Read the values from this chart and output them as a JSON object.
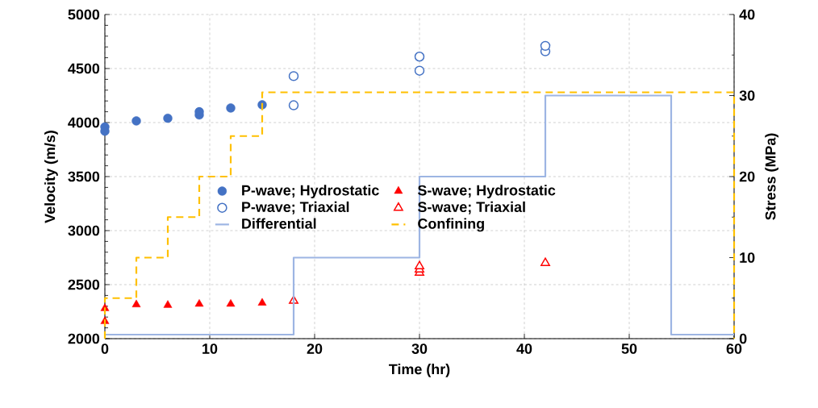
{
  "chart_data": {
    "type": "scatter",
    "xlabel": "Time (hr)",
    "ylabel": "Velocity (m/s)",
    "y2label": "Stress (MPa)",
    "xlim": [
      0,
      60
    ],
    "xticks": [
      0,
      10,
      20,
      30,
      40,
      50,
      60
    ],
    "ylim": [
      2000,
      5000
    ],
    "yticks": [
      2000,
      2500,
      3000,
      3500,
      4000,
      4500,
      5000
    ],
    "y2lim": [
      0,
      40
    ],
    "y2ticks": [
      0,
      10,
      20,
      30,
      40
    ],
    "grid": true,
    "legend": "center",
    "series": [
      {
        "name": "P-wave; Hydrostatic",
        "color": "#4472c4",
        "marker": "circle",
        "x": [
          0,
          0,
          3,
          6,
          9,
          9,
          12,
          15
        ],
        "values": [
          3920,
          3960,
          4015,
          4040,
          4070,
          4100,
          4135,
          4165
        ]
      },
      {
        "name": "S-wave; Hydrostatic",
        "color": "#ff0000",
        "marker": "triangle",
        "x": [
          0,
          0,
          3,
          6,
          9,
          12,
          15
        ],
        "values": [
          2160,
          2280,
          2315,
          2310,
          2320,
          2320,
          2330
        ]
      },
      {
        "name": "P-wave; Triaxial",
        "color": "#4472c4",
        "marker": "circle-open",
        "x": [
          18,
          18,
          30,
          30,
          42,
          42
        ],
        "values": [
          4160,
          4430,
          4480,
          4610,
          4660,
          4710
        ]
      },
      {
        "name": "S-wave; Triaxial",
        "color": "#ff0000",
        "marker": "triangle-open",
        "x": [
          18,
          30,
          30,
          30,
          42
        ],
        "values": [
          2350,
          2610,
          2640,
          2670,
          2700
        ]
      },
      {
        "name": "Differential",
        "type": "step",
        "axis": "y2",
        "color": "#9db5e3",
        "line_style": "solid",
        "marker": "none",
        "x": [
          0,
          18,
          30,
          42,
          54,
          60
        ],
        "values": [
          0.5,
          10,
          20,
          30,
          0.5,
          0.5
        ]
      },
      {
        "name": "Confining",
        "type": "step",
        "axis": "y2",
        "color": "#ffc000",
        "line_style": "dashed",
        "marker": "none",
        "x": [
          0,
          0,
          3,
          6,
          9,
          12,
          15,
          60,
          60
        ],
        "values": [
          0,
          5,
          10,
          15,
          20,
          25,
          30.4,
          30.4,
          0
        ]
      }
    ]
  }
}
